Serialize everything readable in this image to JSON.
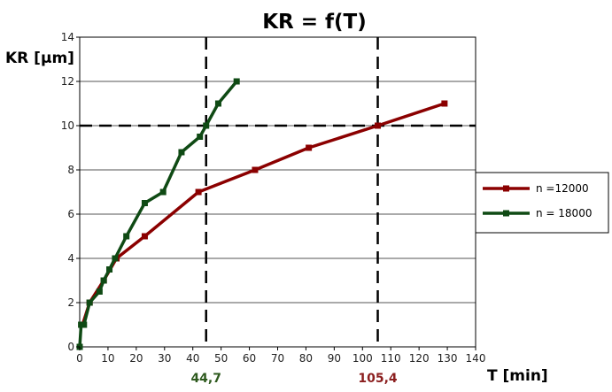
{
  "chart_data": {
    "type": "line",
    "title": "KR = f(T)",
    "xlabel": "T [min]",
    "ylabel": "KR [µm]",
    "xlim": [
      0,
      140
    ],
    "ylim": [
      0,
      14
    ],
    "x_ticks": [
      0,
      10,
      20,
      30,
      40,
      50,
      60,
      70,
      80,
      90,
      100,
      110,
      120,
      130,
      140
    ],
    "y_ticks": [
      0,
      2,
      4,
      6,
      8,
      10,
      12,
      14
    ],
    "grid": "horizontal",
    "legend_position": "right",
    "series": [
      {
        "name": "n =12000",
        "color": "#8b0000",
        "points": [
          [
            1,
            1
          ],
          [
            3.5,
            2
          ],
          [
            8.5,
            3
          ],
          [
            13,
            4
          ],
          [
            23,
            5
          ],
          [
            42,
            7
          ],
          [
            62,
            8
          ],
          [
            81,
            9
          ],
          [
            105.4,
            10
          ],
          [
            129,
            11
          ]
        ]
      },
      {
        "name": "n = 18000",
        "color": "#0f4a14",
        "points": [
          [
            0,
            0
          ],
          [
            0.5,
            1
          ],
          [
            1.5,
            1
          ],
          [
            3.5,
            2
          ],
          [
            7,
            2.5
          ],
          [
            8.5,
            3
          ],
          [
            10.5,
            3.5
          ],
          [
            12.5,
            4
          ],
          [
            16.5,
            5
          ],
          [
            23,
            6.5
          ],
          [
            29.5,
            7
          ],
          [
            36,
            8.8
          ],
          [
            42.5,
            9.5
          ],
          [
            44.7,
            10
          ],
          [
            49,
            11
          ],
          [
            55.5,
            12
          ]
        ]
      }
    ],
    "reference_lines": {
      "horizontal": [
        10
      ],
      "vertical": [
        {
          "x": 44.7,
          "label": "44,7",
          "color": "#2e5a1e"
        },
        {
          "x": 105.4,
          "label": "105,4",
          "color": "#8b1e1e"
        }
      ]
    }
  }
}
